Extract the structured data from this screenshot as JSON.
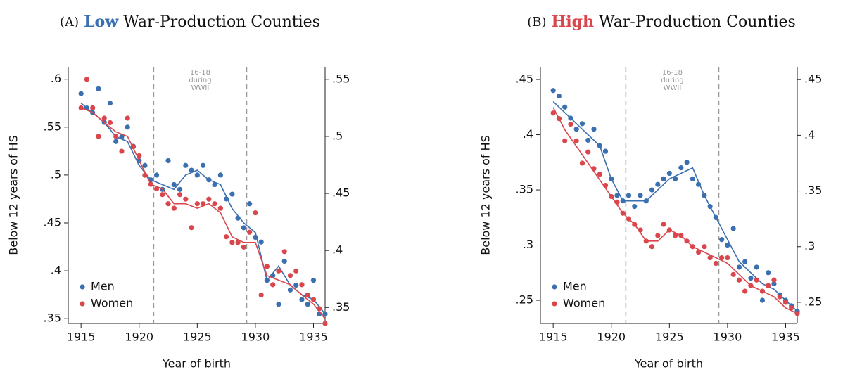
{
  "chart_data": [
    {
      "type": "scatter",
      "title_prefix": "(A)",
      "title_highlight": "Low",
      "title_highlight_color": "#3a6fb0",
      "title_rest": "War-Production Counties",
      "y_label": "Below 12 years of HS",
      "x_label": "Year of birth",
      "annotation": [
        "16-18",
        "during",
        "WWII"
      ],
      "vlines": [
        1921.25,
        1929.25
      ],
      "xlim": [
        1913.9,
        1936.0
      ],
      "xticks": [
        1915,
        1920,
        1925,
        1930,
        1935
      ],
      "ylim": [
        0.345,
        0.613
      ],
      "yticks": [
        {
          "value": 0.35,
          "label": ".35"
        },
        {
          "value": 0.4,
          "label": ".4"
        },
        {
          "value": 0.45,
          "label": ".45"
        },
        {
          "value": 0.5,
          "label": ".5"
        },
        {
          "value": 0.55,
          "label": ".55"
        },
        {
          "value": 0.6,
          "label": ".6"
        }
      ],
      "y2lim": [
        0.336,
        0.561
      ],
      "y2ticks": [
        {
          "value": 0.35,
          "label": ".35"
        },
        {
          "value": 0.4,
          "label": ".4"
        },
        {
          "value": 0.45,
          "label": ".45"
        },
        {
          "value": 0.5,
          "label": ".5"
        },
        {
          "value": 0.55,
          "label": ".55"
        }
      ],
      "legend": "lower left",
      "x": [
        1915,
        1915.5,
        1916,
        1916.5,
        1917,
        1917.5,
        1918,
        1918.5,
        1919,
        1919.5,
        1920,
        1920.5,
        1921,
        1921.5,
        1922,
        1922.5,
        1923,
        1923.5,
        1924,
        1924.5,
        1925,
        1925.5,
        1926,
        1926.5,
        1927,
        1927.5,
        1928,
        1928.5,
        1929,
        1929.5,
        1930,
        1930.5,
        1931,
        1931.5,
        1932,
        1932.5,
        1933,
        1933.5,
        1934,
        1934.5,
        1935,
        1935.5,
        1936
      ],
      "line_x": [
        1915,
        1916,
        1917,
        1918,
        1919,
        1920,
        1921,
        1922,
        1923,
        1924,
        1925,
        1926,
        1927,
        1928,
        1929,
        1930,
        1931,
        1932,
        1933,
        1934,
        1935,
        1936
      ],
      "series": [
        {
          "name": "Men",
          "color": "#3a6fb0",
          "axis": "y",
          "values": [
            0.585,
            0.57,
            0.565,
            0.59,
            0.555,
            0.575,
            0.535,
            0.54,
            0.55,
            0.53,
            0.515,
            0.51,
            0.495,
            0.5,
            0.485,
            0.515,
            0.49,
            0.485,
            0.51,
            0.505,
            0.5,
            0.51,
            0.495,
            0.49,
            0.5,
            0.475,
            0.48,
            0.455,
            0.445,
            0.47,
            0.435,
            0.43,
            0.39,
            0.395,
            0.365,
            0.41,
            0.38,
            0.385,
            0.37,
            0.365,
            0.39,
            0.355,
            0.355
          ],
          "line_values": [
            0.575,
            0.565,
            0.555,
            0.54,
            0.535,
            0.51,
            0.495,
            0.49,
            0.485,
            0.5,
            0.505,
            0.495,
            0.49,
            0.465,
            0.45,
            0.44,
            0.39,
            0.405,
            0.385,
            0.375,
            0.37,
            0.355
          ]
        },
        {
          "name": "Women",
          "color": "#d9464b",
          "axis": "y2",
          "values": [
            0.525,
            0.55,
            0.525,
            0.5,
            0.516,
            0.512,
            0.5,
            0.487,
            0.516,
            0.491,
            0.483,
            0.466,
            0.458,
            0.454,
            0.449,
            0.441,
            0.437,
            0.449,
            0.445,
            0.42,
            0.441,
            0.441,
            0.445,
            0.441,
            0.437,
            0.412,
            0.407,
            0.407,
            0.403,
            0.416,
            0.433,
            0.361,
            0.386,
            0.37,
            0.382,
            0.399,
            0.378,
            0.382,
            0.37,
            0.361,
            0.357,
            0.349,
            0.336
          ],
          "line_values": [
            0.525,
            0.521,
            0.512,
            0.504,
            0.5,
            0.479,
            0.458,
            0.454,
            0.441,
            0.441,
            0.437,
            0.441,
            0.433,
            0.412,
            0.407,
            0.407,
            0.378,
            0.374,
            0.37,
            0.361,
            0.353,
            0.34
          ]
        }
      ]
    },
    {
      "type": "scatter",
      "title_prefix": "(B)",
      "title_highlight": "High",
      "title_highlight_color": "#d9464b",
      "title_rest": "War-Production Counties",
      "y_label": "Below 12 years of HS",
      "x_label": "Year of birth",
      "annotation": [
        "16-18",
        "during",
        "WWII"
      ],
      "vlines": [
        1921.25,
        1929.25
      ],
      "xlim": [
        1913.9,
        1936.0
      ],
      "xticks": [
        1915,
        1920,
        1925,
        1930,
        1935
      ],
      "ylim": [
        0.229,
        0.4615
      ],
      "yticks": [
        {
          "value": 0.25,
          "label": ".25"
        },
        {
          "value": 0.3,
          "label": ".3"
        },
        {
          "value": 0.35,
          "label": ".35"
        },
        {
          "value": 0.4,
          "label": ".4"
        },
        {
          "value": 0.45,
          "label": ".45"
        }
      ],
      "y2lim": [
        0.231,
        0.4615
      ],
      "y2ticks": [
        {
          "value": 0.25,
          "label": ".25"
        },
        {
          "value": 0.3,
          "label": ".3"
        },
        {
          "value": 0.35,
          "label": ".35"
        },
        {
          "value": 0.4,
          "label": ".4"
        },
        {
          "value": 0.45,
          "label": ".45"
        }
      ],
      "legend": "lower left",
      "x": [
        1915,
        1915.5,
        1916,
        1916.5,
        1917,
        1917.5,
        1918,
        1918.5,
        1919,
        1919.5,
        1920,
        1920.5,
        1921,
        1921.5,
        1922,
        1922.5,
        1923,
        1923.5,
        1924,
        1924.5,
        1925,
        1925.5,
        1926,
        1926.5,
        1927,
        1927.5,
        1928,
        1928.5,
        1929,
        1929.5,
        1930,
        1930.5,
        1931,
        1931.5,
        1932,
        1932.5,
        1933,
        1933.5,
        1934,
        1934.5,
        1935,
        1935.5,
        1936
      ],
      "line_x": [
        1915,
        1916,
        1917,
        1918,
        1919,
        1920,
        1921,
        1922,
        1923,
        1924,
        1925,
        1926,
        1927,
        1928,
        1929,
        1930,
        1931,
        1932,
        1933,
        1934,
        1935,
        1936
      ],
      "series": [
        {
          "name": "Men",
          "color": "#3a6fb0",
          "axis": "y",
          "values": [
            0.44,
            0.435,
            0.425,
            0.415,
            0.405,
            0.41,
            0.395,
            0.405,
            0.39,
            0.385,
            0.36,
            0.345,
            0.34,
            0.345,
            0.335,
            0.345,
            0.34,
            0.35,
            0.355,
            0.36,
            0.365,
            0.36,
            0.37,
            0.375,
            0.36,
            0.355,
            0.345,
            0.335,
            0.325,
            0.305,
            0.3,
            0.315,
            0.28,
            0.285,
            0.27,
            0.28,
            0.25,
            0.275,
            0.265,
            0.255,
            0.25,
            0.245,
            0.24
          ],
          "line_values": [
            0.43,
            0.42,
            0.41,
            0.4,
            0.39,
            0.36,
            0.34,
            0.34,
            0.34,
            0.35,
            0.36,
            0.365,
            0.37,
            0.345,
            0.325,
            0.305,
            0.285,
            0.275,
            0.265,
            0.26,
            0.25,
            0.24
          ]
        },
        {
          "name": "Women",
          "color": "#d9464b",
          "axis": "y2",
          "values": [
            0.42,
            0.415,
            0.395,
            0.41,
            0.395,
            0.375,
            0.385,
            0.37,
            0.365,
            0.355,
            0.345,
            0.34,
            0.33,
            0.325,
            0.32,
            0.315,
            0.305,
            0.3,
            0.31,
            0.32,
            0.315,
            0.31,
            0.31,
            0.305,
            0.3,
            0.295,
            0.3,
            0.29,
            0.285,
            0.29,
            0.29,
            0.275,
            0.27,
            0.26,
            0.265,
            0.27,
            0.26,
            0.265,
            0.27,
            0.255,
            0.25,
            0.245,
            0.24
          ],
          "line_values": [
            0.425,
            0.405,
            0.39,
            0.375,
            0.36,
            0.345,
            0.33,
            0.32,
            0.305,
            0.305,
            0.315,
            0.31,
            0.3,
            0.295,
            0.29,
            0.285,
            0.275,
            0.265,
            0.26,
            0.255,
            0.245,
            0.24
          ]
        }
      ]
    }
  ]
}
